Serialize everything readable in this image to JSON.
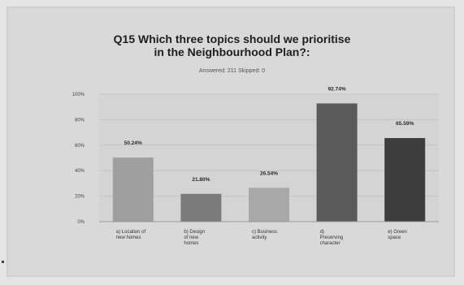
{
  "chart_data": {
    "type": "bar",
    "title": "Q15 Which three topics should we prioritise in the Neighbourhood Plan?:",
    "title_lines": [
      "Q15 Which three topics should we prioritise",
      "in the Neighbourhood Plan?:"
    ],
    "subtitle": "Answered: 211    Skipped: 0",
    "categories": [
      "a) Location of new homes",
      "b) Design of new homes",
      "c) Business activity",
      "d) Preserving character",
      "e) Green space"
    ],
    "category_label_lines": [
      [
        "a) Location of",
        "new homes"
      ],
      [
        "b) Design",
        "of new",
        "homes"
      ],
      [
        "c) Business",
        "activity"
      ],
      [
        "d)",
        "Preserving",
        "character"
      ],
      [
        "e) Green",
        "space"
      ]
    ],
    "values": [
      50.24,
      21.8,
      26.54,
      92.74,
      65.59
    ],
    "data_labels": [
      "50.24%",
      "21.80%",
      "26.54%",
      "92.74%",
      "65.59%"
    ],
    "bar_colors": [
      "#9f9f9f",
      "#7b7b7b",
      "#a8a8a8",
      "#5a5a5a",
      "#3e3e3e"
    ],
    "yticks": [
      "0%",
      "20%",
      "40%",
      "60%",
      "80%",
      "100%"
    ],
    "ylim": [
      0,
      100
    ],
    "grid": true,
    "legend": "none"
  }
}
